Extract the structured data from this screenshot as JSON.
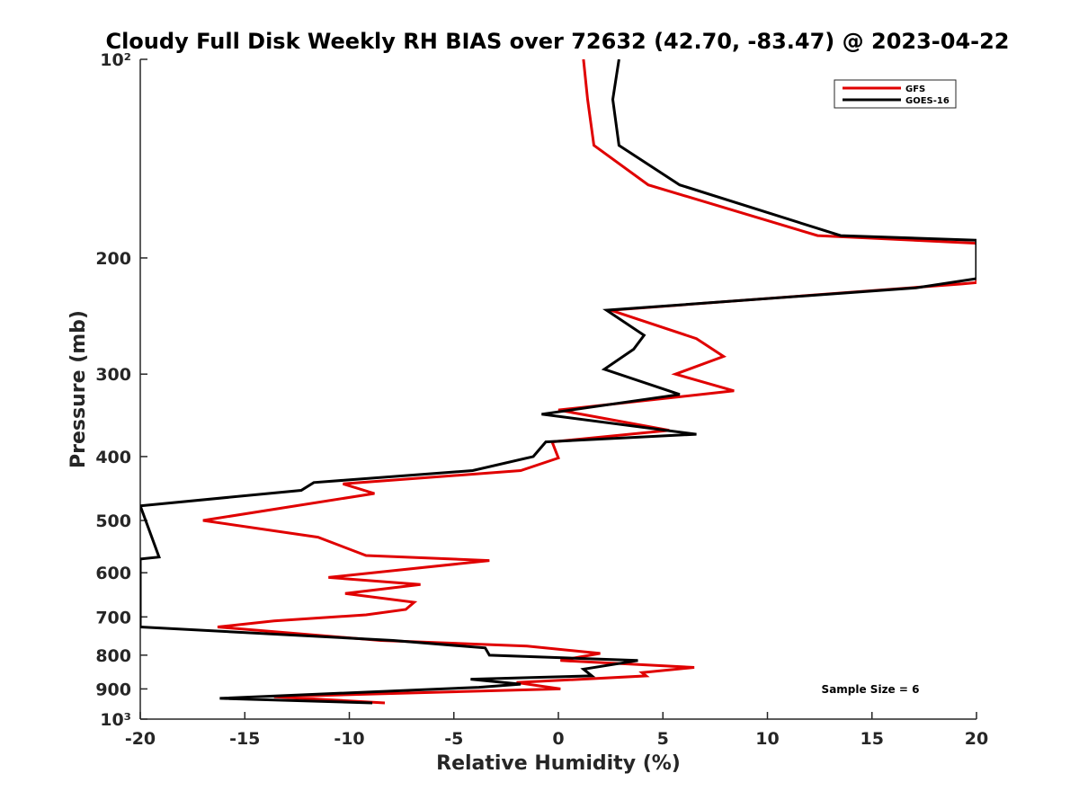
{
  "chart_data": {
    "type": "line",
    "title": "Cloudy Full Disk Weekly RH BIAS over 72632 (42.70, -83.47) @ 2023-04-22",
    "xlabel": "Relative Humidity (%)",
    "ylabel": "Pressure (mb)",
    "xlim": [
      -20,
      20
    ],
    "ylim": [
      100,
      1000
    ],
    "y_scale": "log",
    "y_reversed": true,
    "x_ticks": [
      -20,
      -15,
      -10,
      -5,
      0,
      5,
      10,
      15,
      20
    ],
    "x_tick_labels": [
      "-20",
      "-15",
      "-10",
      "-5",
      "0",
      "5",
      "10",
      "15",
      "20"
    ],
    "y_ticks": [
      100,
      200,
      300,
      400,
      500,
      600,
      700,
      800,
      900,
      1000
    ],
    "y_tick_labels": [
      "10²",
      "200",
      "300",
      "400",
      "500",
      "600",
      "700",
      "800",
      "900",
      "10³"
    ],
    "legend_position": "top-right",
    "grid": false,
    "annotation": "Sample Size = 6",
    "series": [
      {
        "name": "GFS",
        "color": "#e00000",
        "points": [
          [
            1.2,
            100
          ],
          [
            1.4,
            115
          ],
          [
            1.7,
            135
          ],
          [
            4.3,
            155
          ],
          [
            12.4,
            185
          ],
          [
            20,
            190
          ],
          [
            20,
            218
          ],
          [
            19.3,
            219
          ],
          [
            2.5,
            240
          ],
          [
            6.6,
            265
          ],
          [
            7.9,
            282
          ],
          [
            5.6,
            300
          ],
          [
            8.4,
            318
          ],
          [
            0.0,
            340
          ],
          [
            5.3,
            365
          ],
          [
            -0.3,
            380
          ],
          [
            0.0,
            402
          ],
          [
            -1.8,
            420
          ],
          [
            -10.3,
            440
          ],
          [
            -8.8,
            455
          ],
          [
            -17.0,
            500
          ],
          [
            -11.5,
            530
          ],
          [
            -9.2,
            565
          ],
          [
            -3.3,
            575
          ],
          [
            -11.0,
            610
          ],
          [
            -6.6,
            625
          ],
          [
            -10.2,
            645
          ],
          [
            -6.9,
            665
          ],
          [
            -7.3,
            682
          ],
          [
            -9.2,
            695
          ],
          [
            -13.6,
            710
          ],
          [
            -16.3,
            725
          ],
          [
            -8.5,
            760
          ],
          [
            -1.5,
            775
          ],
          [
            2.0,
            795
          ],
          [
            0.1,
            815
          ],
          [
            6.5,
            835
          ],
          [
            4.0,
            850
          ],
          [
            4.2,
            860
          ],
          [
            -2.0,
            880
          ],
          [
            0.1,
            900
          ],
          [
            -13.6,
            925
          ],
          [
            -8.3,
            945
          ]
        ]
      },
      {
        "name": "GOES-16",
        "color": "#000000",
        "points": [
          [
            2.9,
            100
          ],
          [
            2.6,
            115
          ],
          [
            2.9,
            135
          ],
          [
            5.8,
            155
          ],
          [
            13.5,
            185
          ],
          [
            20,
            188
          ],
          [
            20,
            215
          ],
          [
            17.1,
            222
          ],
          [
            2.3,
            240
          ],
          [
            4.1,
            262
          ],
          [
            3.6,
            275
          ],
          [
            2.2,
            295
          ],
          [
            5.8,
            322
          ],
          [
            -0.8,
            345
          ],
          [
            6.6,
            370
          ],
          [
            -0.6,
            380
          ],
          [
            -1.2,
            400
          ],
          [
            -4.1,
            420
          ],
          [
            -11.7,
            438
          ],
          [
            -12.3,
            450
          ],
          [
            -20,
            475
          ],
          [
            -19.1,
            568
          ],
          [
            -20,
            572
          ],
          [
            -20,
            725
          ],
          [
            -7.9,
            760
          ],
          [
            -3.5,
            780
          ],
          [
            -3.3,
            800
          ],
          [
            3.8,
            815
          ],
          [
            1.2,
            840
          ],
          [
            1.6,
            860
          ],
          [
            -4.2,
            870
          ],
          [
            -1.8,
            885
          ],
          [
            -3.8,
            895
          ],
          [
            -16.2,
            930
          ],
          [
            -8.9,
            945
          ]
        ]
      }
    ]
  }
}
